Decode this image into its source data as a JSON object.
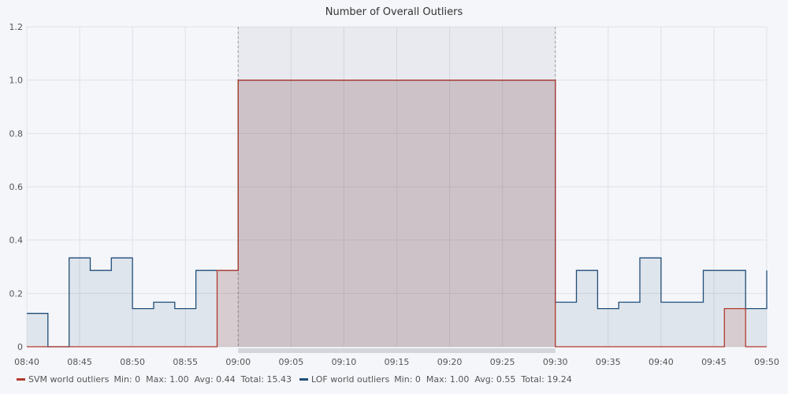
{
  "chart_data": {
    "type": "area",
    "title": "Number of Overall Outliers",
    "xlabel": "",
    "ylabel": "",
    "ylim": [
      0,
      1.2
    ],
    "yticks": [
      0,
      0.2,
      0.4,
      0.6,
      0.8,
      1.0,
      1.2
    ],
    "ytick_labels": [
      "0",
      "0.2",
      "0.4",
      "0.6",
      "0.8",
      "1.0",
      "1.2"
    ],
    "xlim": [
      "08:40",
      "09:50"
    ],
    "xtick_labels": [
      "08:40",
      "08:45",
      "08:50",
      "08:55",
      "09:00",
      "09:05",
      "09:10",
      "09:15",
      "09:20",
      "09:25",
      "09:30",
      "09:35",
      "09:40",
      "09:45",
      "09:50"
    ],
    "step": true,
    "grid": true,
    "highlight_range": [
      "09:00",
      "09:30"
    ],
    "series": [
      {
        "name": "SVM world outliers",
        "color": "#b03a2e",
        "fill": "rgba(176,58,46,0.15)",
        "stats": "Min: 0  Max: 1.00  Avg: 0.44  Total: 15.43",
        "x": [
          "08:40",
          "08:58",
          "09:00",
          "09:30",
          "09:46",
          "09:48",
          "09:50"
        ],
        "values": [
          0,
          0.286,
          1.0,
          0,
          0.143,
          0,
          0
        ]
      },
      {
        "name": "LOF world outliers",
        "color": "#1f4e79",
        "fill": "rgba(31,78,121,0.10)",
        "stats": "Min: 0  Max: 1.00  Avg: 0.55  Total: 19.24",
        "x": [
          "08:40",
          "08:42",
          "08:44",
          "08:46",
          "08:48",
          "08:50",
          "08:52",
          "08:54",
          "08:56",
          "08:58",
          "09:00",
          "09:30",
          "09:32",
          "09:34",
          "09:36",
          "09:38",
          "09:40",
          "09:42",
          "09:44",
          "09:46",
          "09:48",
          "09:50"
        ],
        "values": [
          0.125,
          0,
          0.333,
          0.286,
          0.333,
          0.143,
          0.167,
          0.143,
          0.286,
          0.286,
          1.0,
          0.167,
          0.286,
          0.143,
          0.167,
          0.333,
          0.167,
          0.167,
          0.286,
          0.286,
          0.143,
          0.286
        ]
      }
    ]
  }
}
